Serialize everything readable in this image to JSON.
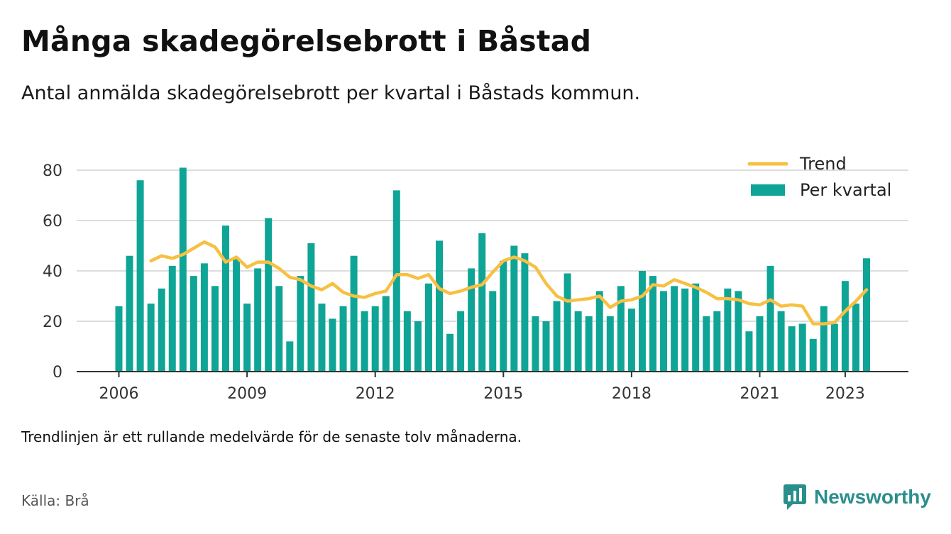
{
  "header": {
    "title": "Många skadegörelsebrott i Båstad",
    "subtitle": "Antal anmälda skadegörelsebrott per kvartal i Båstads kommun."
  },
  "footer": {
    "note": "Trendlinjen är ett rullande medelvärde för de senaste tolv månaderna.",
    "source": "Källa: Brå",
    "brand": "Newsworthy"
  },
  "colors": {
    "bars": "#0fa596",
    "trend": "#f7c042",
    "grid": "#dddddd",
    "axis": "#333333",
    "brand": "#2a8f8c"
  },
  "chart_data": {
    "type": "bar",
    "x_start": "2006 Q1",
    "ylim": [
      0,
      80
    ],
    "yticks": [
      0,
      20,
      40,
      60,
      80
    ],
    "xticks": [
      {
        "label": "2006",
        "index": 0
      },
      {
        "label": "2009",
        "index": 12
      },
      {
        "label": "2012",
        "index": 24
      },
      {
        "label": "2015",
        "index": 36
      },
      {
        "label": "2018",
        "index": 48
      },
      {
        "label": "2021",
        "index": 60
      },
      {
        "label": "2023",
        "index": 68
      }
    ],
    "legend_position": "top-right",
    "grid": true,
    "series": [
      {
        "name": "Per kvartal",
        "type": "bar",
        "values": [
          26,
          46,
          76,
          27,
          33,
          42,
          81,
          38,
          43,
          34,
          58,
          45,
          27,
          41,
          61,
          34,
          12,
          38,
          51,
          27,
          21,
          26,
          46,
          24,
          26,
          30,
          72,
          24,
          20,
          35,
          52,
          15,
          24,
          41,
          55,
          32,
          44,
          50,
          47,
          22,
          20,
          28,
          39,
          24,
          22,
          32,
          22,
          34,
          25,
          40,
          38,
          32,
          34,
          33,
          35,
          22,
          24,
          33,
          32,
          16,
          22,
          42,
          24,
          18,
          19,
          13,
          26,
          19,
          36,
          27,
          45
        ]
      },
      {
        "name": "Trend",
        "type": "line",
        "start_index": 3,
        "values": [
          44,
          46,
          45,
          46.5,
          49,
          51.5,
          49.5,
          43.5,
          45.5,
          41.5,
          43.5,
          43.5,
          41,
          37.5,
          36.5,
          34,
          32.5,
          35,
          31.5,
          30,
          29.5,
          31,
          32,
          38.5,
          38.5,
          37,
          38.5,
          33,
          31,
          32,
          33.5,
          34.5,
          39.5,
          44,
          45.5,
          44,
          41.5,
          35,
          30,
          28,
          28.5,
          29,
          30,
          25.5,
          28,
          28.5,
          30,
          34.5,
          34,
          36.5,
          35,
          33.5,
          31.5,
          29,
          29,
          28.5,
          27,
          26.5,
          28.5,
          26,
          26.5,
          26,
          19,
          19,
          19.5,
          24,
          28,
          32.5
        ]
      }
    ]
  }
}
